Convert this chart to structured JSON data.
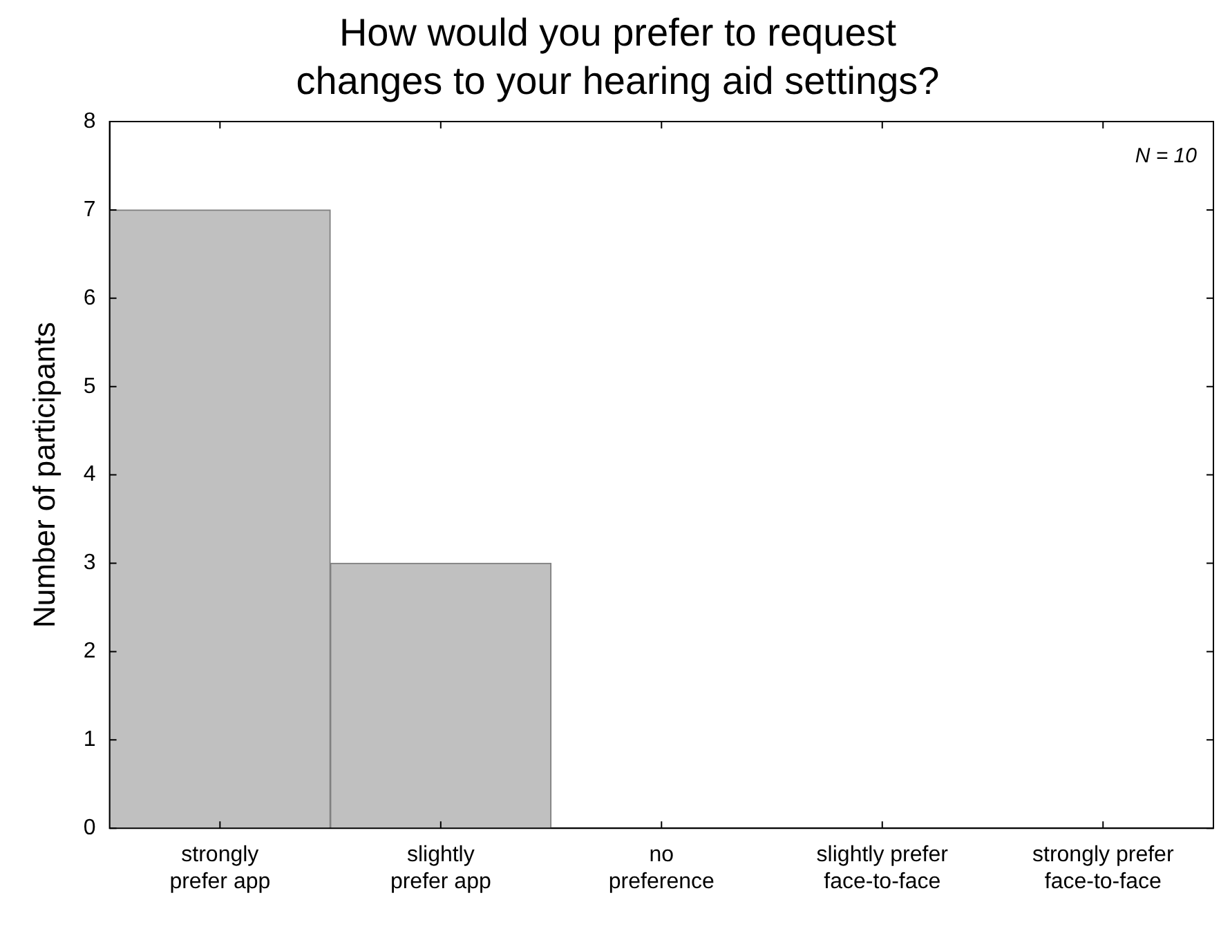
{
  "chart_data": {
    "type": "bar",
    "title": "How would you prefer to request changes to your hearing aid settings?",
    "ylabel": "Number of participants",
    "categories": [
      "strongly prefer app",
      "slightly prefer app",
      "no preference",
      "slightly prefer face-to-face",
      "strongly prefer face-to-face"
    ],
    "values": [
      7,
      3,
      0,
      0,
      0
    ],
    "color": "#c0c0c0",
    "ylim": [
      0,
      8
    ],
    "yticks": [
      0,
      1,
      2,
      3,
      4,
      5,
      6,
      7,
      8
    ],
    "grid": false,
    "legend": false,
    "annotations": [
      "N = 10"
    ]
  }
}
